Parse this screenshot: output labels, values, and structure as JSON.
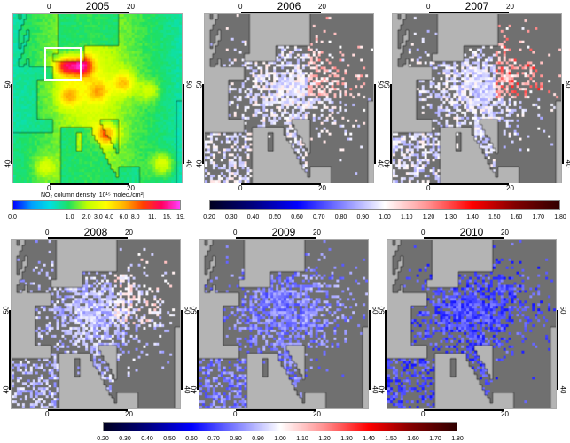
{
  "panels": [
    {
      "year": "2005",
      "kind": "no2"
    },
    {
      "year": "2006",
      "kind": "ratio",
      "trend": 0.97,
      "east_red": 0.15
    },
    {
      "year": "2007",
      "kind": "ratio",
      "trend": 0.95,
      "east_red": 0.25
    },
    {
      "year": "2008",
      "kind": "ratio",
      "trend": 0.9,
      "east_red": 0.12
    },
    {
      "year": "2009",
      "kind": "ratio",
      "trend": 0.8,
      "east_red": 0.03
    },
    {
      "year": "2010",
      "kind": "ratio",
      "trend": 0.72,
      "east_red": 0.0
    }
  ],
  "axes": {
    "lon_ticks": [
      "0",
      "20"
    ],
    "lat_ticks": [
      "50",
      "40"
    ]
  },
  "colorbar_no2": {
    "title": "NO₂ column density [10¹⁵ molec./cm²]",
    "ticks": [
      "0.0",
      "1.0",
      "2.0",
      "3.0",
      "4.0",
      "6.0",
      "8.0",
      "11.",
      "15.",
      "19."
    ],
    "colors": [
      "#0000ff",
      "#00a0ff",
      "#00e0e0",
      "#20e060",
      "#c0ff00",
      "#ffff00",
      "#ffb000",
      "#ff4000",
      "#ff0060",
      "#ff40ff"
    ]
  },
  "colorbar_ratio": {
    "ticks": [
      "0.20",
      "0.30",
      "0.40",
      "0.50",
      "0.60",
      "0.70",
      "0.80",
      "0.90",
      "1.00",
      "1.10",
      "1.20",
      "1.30",
      "1.40",
      "1.50",
      "1.60",
      "1.70",
      "1.80"
    ],
    "colors": [
      "#000020",
      "#000080",
      "#0000ff",
      "#8080ff",
      "#ffffff",
      "#ff9090",
      "#ff0000",
      "#800000",
      "#300000"
    ]
  },
  "colors": {
    "sea": "#b4b4b4",
    "land_nodata": "#707070",
    "highlight_box": "#ffffff"
  }
}
